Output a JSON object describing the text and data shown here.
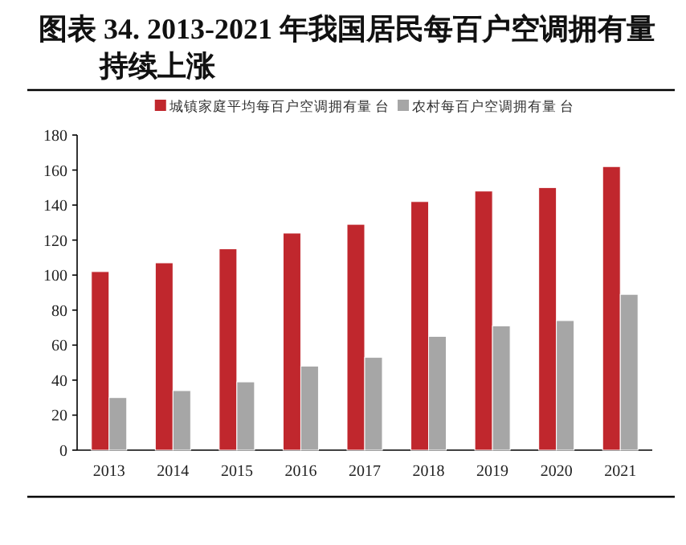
{
  "chart_data": {
    "type": "bar",
    "title": "图表 34. 2013-2021 年我国居民每百户空调拥有量持续上涨",
    "categories": [
      "2013",
      "2014",
      "2015",
      "2016",
      "2017",
      "2018",
      "2019",
      "2020",
      "2021"
    ],
    "series": [
      {
        "name": "城镇家庭平均每百户空调拥有量 台",
        "color": "#c0272d",
        "values": [
          102,
          107,
          115,
          124,
          129,
          142,
          148,
          150,
          162
        ]
      },
      {
        "name": "农村每百户空调拥有量 台",
        "color": "#a6a6a6",
        "values": [
          30,
          34,
          39,
          48,
          53,
          65,
          71,
          74,
          89
        ]
      }
    ],
    "ylim": [
      0,
      180
    ],
    "yticks": [
      0,
      20,
      40,
      60,
      80,
      100,
      120,
      140,
      160,
      180
    ],
    "legend": "top"
  }
}
